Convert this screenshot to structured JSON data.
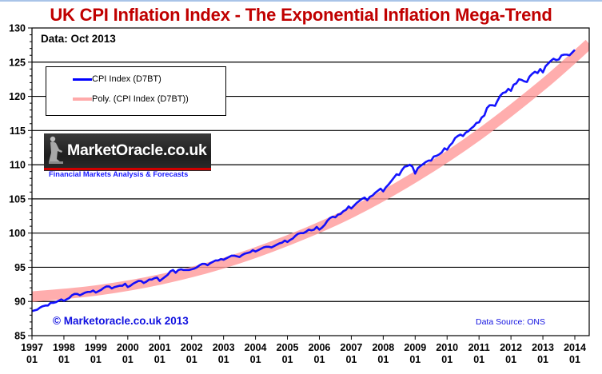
{
  "chart_data": {
    "type": "line",
    "title": "UK CPI Inflation Index - The Exponential Inflation Mega-Trend",
    "subtitle": "Data: Oct 2013",
    "xlabel": "",
    "ylabel": "",
    "ylim": [
      85,
      130
    ],
    "xlim": [
      1997.0,
      2014.45
    ],
    "y_ticks": [
      85,
      90,
      95,
      100,
      105,
      110,
      115,
      120,
      125,
      130
    ],
    "x_ticks": [
      {
        "year": "1997",
        "month": "01",
        "value": 1997
      },
      {
        "year": "1998",
        "month": "01",
        "value": 1998
      },
      {
        "year": "1999",
        "month": "01",
        "value": 1999
      },
      {
        "year": "2000",
        "month": "01",
        "value": 2000
      },
      {
        "year": "2001",
        "month": "01",
        "value": 2001
      },
      {
        "year": "2002",
        "month": "01",
        "value": 2002
      },
      {
        "year": "2003",
        "month": "01",
        "value": 2003
      },
      {
        "year": "2004",
        "month": "01",
        "value": 2004
      },
      {
        "year": "2005",
        "month": "01",
        "value": 2005
      },
      {
        "year": "2006",
        "month": "01",
        "value": 2006
      },
      {
        "year": "2007",
        "month": "01",
        "value": 2007
      },
      {
        "year": "2008",
        "month": "01",
        "value": 2008
      },
      {
        "year": "2009",
        "month": "01",
        "value": 2009
      },
      {
        "year": "2010",
        "month": "01",
        "value": 2010
      },
      {
        "year": "2011",
        "month": "01",
        "value": 2011
      },
      {
        "year": "2012",
        "month": "01",
        "value": 2012
      },
      {
        "year": "2013",
        "month": "01",
        "value": 2013
      },
      {
        "year": "2014",
        "month": "01",
        "value": 2014
      }
    ],
    "grid": "horizontal",
    "legend_position": "top-left",
    "series": [
      {
        "name": "CPI Index (D7BT)",
        "color": "#0000ff",
        "start": "1997-01",
        "frequency": "monthly",
        "values": [
          88.6,
          88.7,
          88.8,
          89.1,
          89.3,
          89.4,
          89.4,
          89.8,
          89.8,
          89.9,
          90.1,
          90.3,
          90.1,
          90.3,
          90.5,
          90.9,
          91.1,
          91.1,
          90.9,
          91.1,
          91.3,
          91.4,
          91.4,
          91.6,
          91.3,
          91.5,
          91.7,
          92.0,
          92.2,
          92.2,
          91.9,
          92.1,
          92.2,
          92.3,
          92.3,
          92.6,
          92.1,
          92.3,
          92.6,
          92.8,
          93.0,
          93.0,
          92.7,
          92.9,
          93.2,
          93.2,
          93.4,
          93.5,
          93.0,
          93.3,
          93.6,
          93.9,
          94.4,
          94.6,
          94.2,
          94.6,
          94.7,
          94.6,
          94.6,
          94.6,
          94.7,
          94.8,
          95.0,
          95.3,
          95.5,
          95.5,
          95.3,
          95.6,
          95.8,
          96.0,
          96.0,
          96.2,
          96.1,
          96.3,
          96.5,
          96.7,
          96.7,
          96.6,
          96.5,
          96.8,
          97.0,
          97.1,
          97.2,
          97.5,
          97.3,
          97.5,
          97.7,
          97.9,
          98.0,
          98.0,
          97.9,
          98.1,
          98.3,
          98.5,
          98.6,
          98.9,
          98.7,
          99.0,
          99.2,
          99.6,
          99.9,
          100.0,
          100.0,
          100.2,
          100.5,
          100.4,
          100.5,
          100.9,
          100.5,
          100.8,
          101.2,
          101.8,
          102.2,
          102.4,
          102.3,
          102.7,
          102.8,
          103.2,
          103.4,
          103.9,
          103.6,
          104.0,
          104.4,
          104.7,
          105.0,
          105.2,
          104.8,
          105.3,
          105.5,
          105.9,
          106.2,
          106.5,
          106.1,
          106.7,
          107.1,
          107.6,
          108.1,
          108.6,
          108.5,
          109.2,
          109.7,
          109.8,
          110.0,
          109.7,
          108.7,
          109.5,
          109.8,
          110.1,
          110.4,
          110.6,
          110.6,
          111.2,
          111.3,
          111.5,
          111.8,
          112.4,
          112.2,
          112.8,
          113.2,
          113.9,
          114.2,
          114.4,
          114.2,
          114.7,
          114.9,
          115.3,
          115.6,
          116.1,
          116.2,
          116.9,
          117.2,
          118.3,
          118.7,
          118.7,
          118.6,
          119.4,
          120.1,
          120.5,
          120.6,
          121.1,
          120.8,
          121.7,
          121.9,
          122.5,
          122.4,
          122.2,
          122.1,
          122.9,
          123.3,
          123.6,
          123.4,
          124.0,
          123.5,
          124.4,
          124.8,
          125.2,
          125.5,
          125.3,
          125.4,
          126.0,
          126.1,
          126.1,
          126.0,
          126.4,
          126.8
        ]
      },
      {
        "name": "Poly. (CPI Index (D7BT))",
        "color": "#ff9999",
        "kind": "polynomial-trendline",
        "points": [
          {
            "x": 1997.0,
            "y": 90.7
          },
          {
            "x": 1999.0,
            "y": 91.6
          },
          {
            "x": 2001.0,
            "y": 93.2
          },
          {
            "x": 2003.0,
            "y": 95.6
          },
          {
            "x": 2005.0,
            "y": 98.9
          },
          {
            "x": 2007.0,
            "y": 103.0
          },
          {
            "x": 2009.0,
            "y": 108.2
          },
          {
            "x": 2011.0,
            "y": 114.4
          },
          {
            "x": 2013.0,
            "y": 121.7
          },
          {
            "x": 2014.45,
            "y": 127.7
          }
        ]
      }
    ],
    "annotations": [
      "Data: Oct 2013",
      "© Marketoracle.co.uk 2013",
      "Data Source: ONS"
    ]
  },
  "legend": {
    "items": [
      {
        "label": "CPI Index (D7BT)",
        "color": "#0000ff"
      },
      {
        "label": "Poly. (CPI Index (D7BT))",
        "color": "#ff9999"
      }
    ]
  },
  "logo": {
    "name": "MarketOracle.co.uk",
    "tagline": "Financial Markets Analysis & Forecasts"
  },
  "copyright": "© Marketoracle.co.uk 2013",
  "source": "Data Source: ONS"
}
